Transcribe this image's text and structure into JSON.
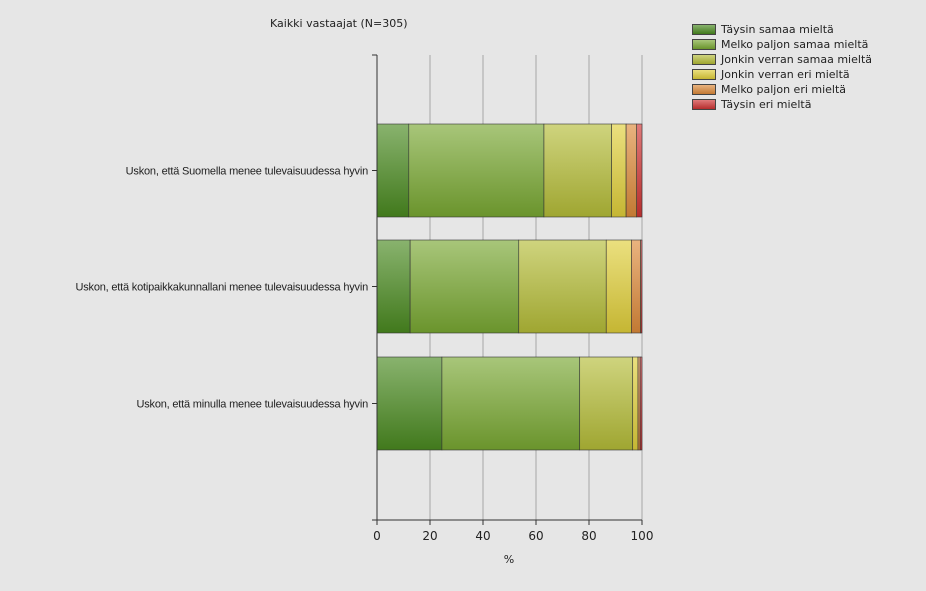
{
  "chart_data": {
    "type": "bar",
    "orientation": "horizontal",
    "stacked": true,
    "title": "Kaikki vastaajat (N=305)",
    "xlabel": "%",
    "ylabel": "",
    "xlim": [
      0,
      100
    ],
    "x_ticks": [
      "0",
      "20",
      "40",
      "60",
      "80",
      "100"
    ],
    "grid": true,
    "legend_position": "top-right",
    "categories": [
      "Uskon, että Suomella menee tulevaisuudessa hyvin",
      "Uskon, että kotipaikkakunnallani menee tulevaisuudessa hyvin",
      "Uskon, että minulla menee tulevaisuudessa hyvin"
    ],
    "series": [
      {
        "name": "Täysin samaa mieltä",
        "color": "#4a8a20",
        "values": [
          12,
          12.5,
          24.5
        ]
      },
      {
        "name": "Melko paljon samaa mieltä",
        "color": "#79a832",
        "values": [
          51,
          41,
          52
        ]
      },
      {
        "name": "Jonkin verran samaa mieltä",
        "color": "#b5bd38",
        "values": [
          25.5,
          33,
          20
        ]
      },
      {
        "name": "Jonkin verran eri mieltä",
        "color": "#e0cf3a",
        "values": [
          5.5,
          9.5,
          2
        ]
      },
      {
        "name": "Melko paljon eri mieltä",
        "color": "#dd8a3a",
        "values": [
          4,
          3.5,
          0.8
        ]
      },
      {
        "name": "Täysin eri mieltä",
        "color": "#cf3333",
        "values": [
          2,
          0.5,
          0.7
        ]
      }
    ]
  }
}
